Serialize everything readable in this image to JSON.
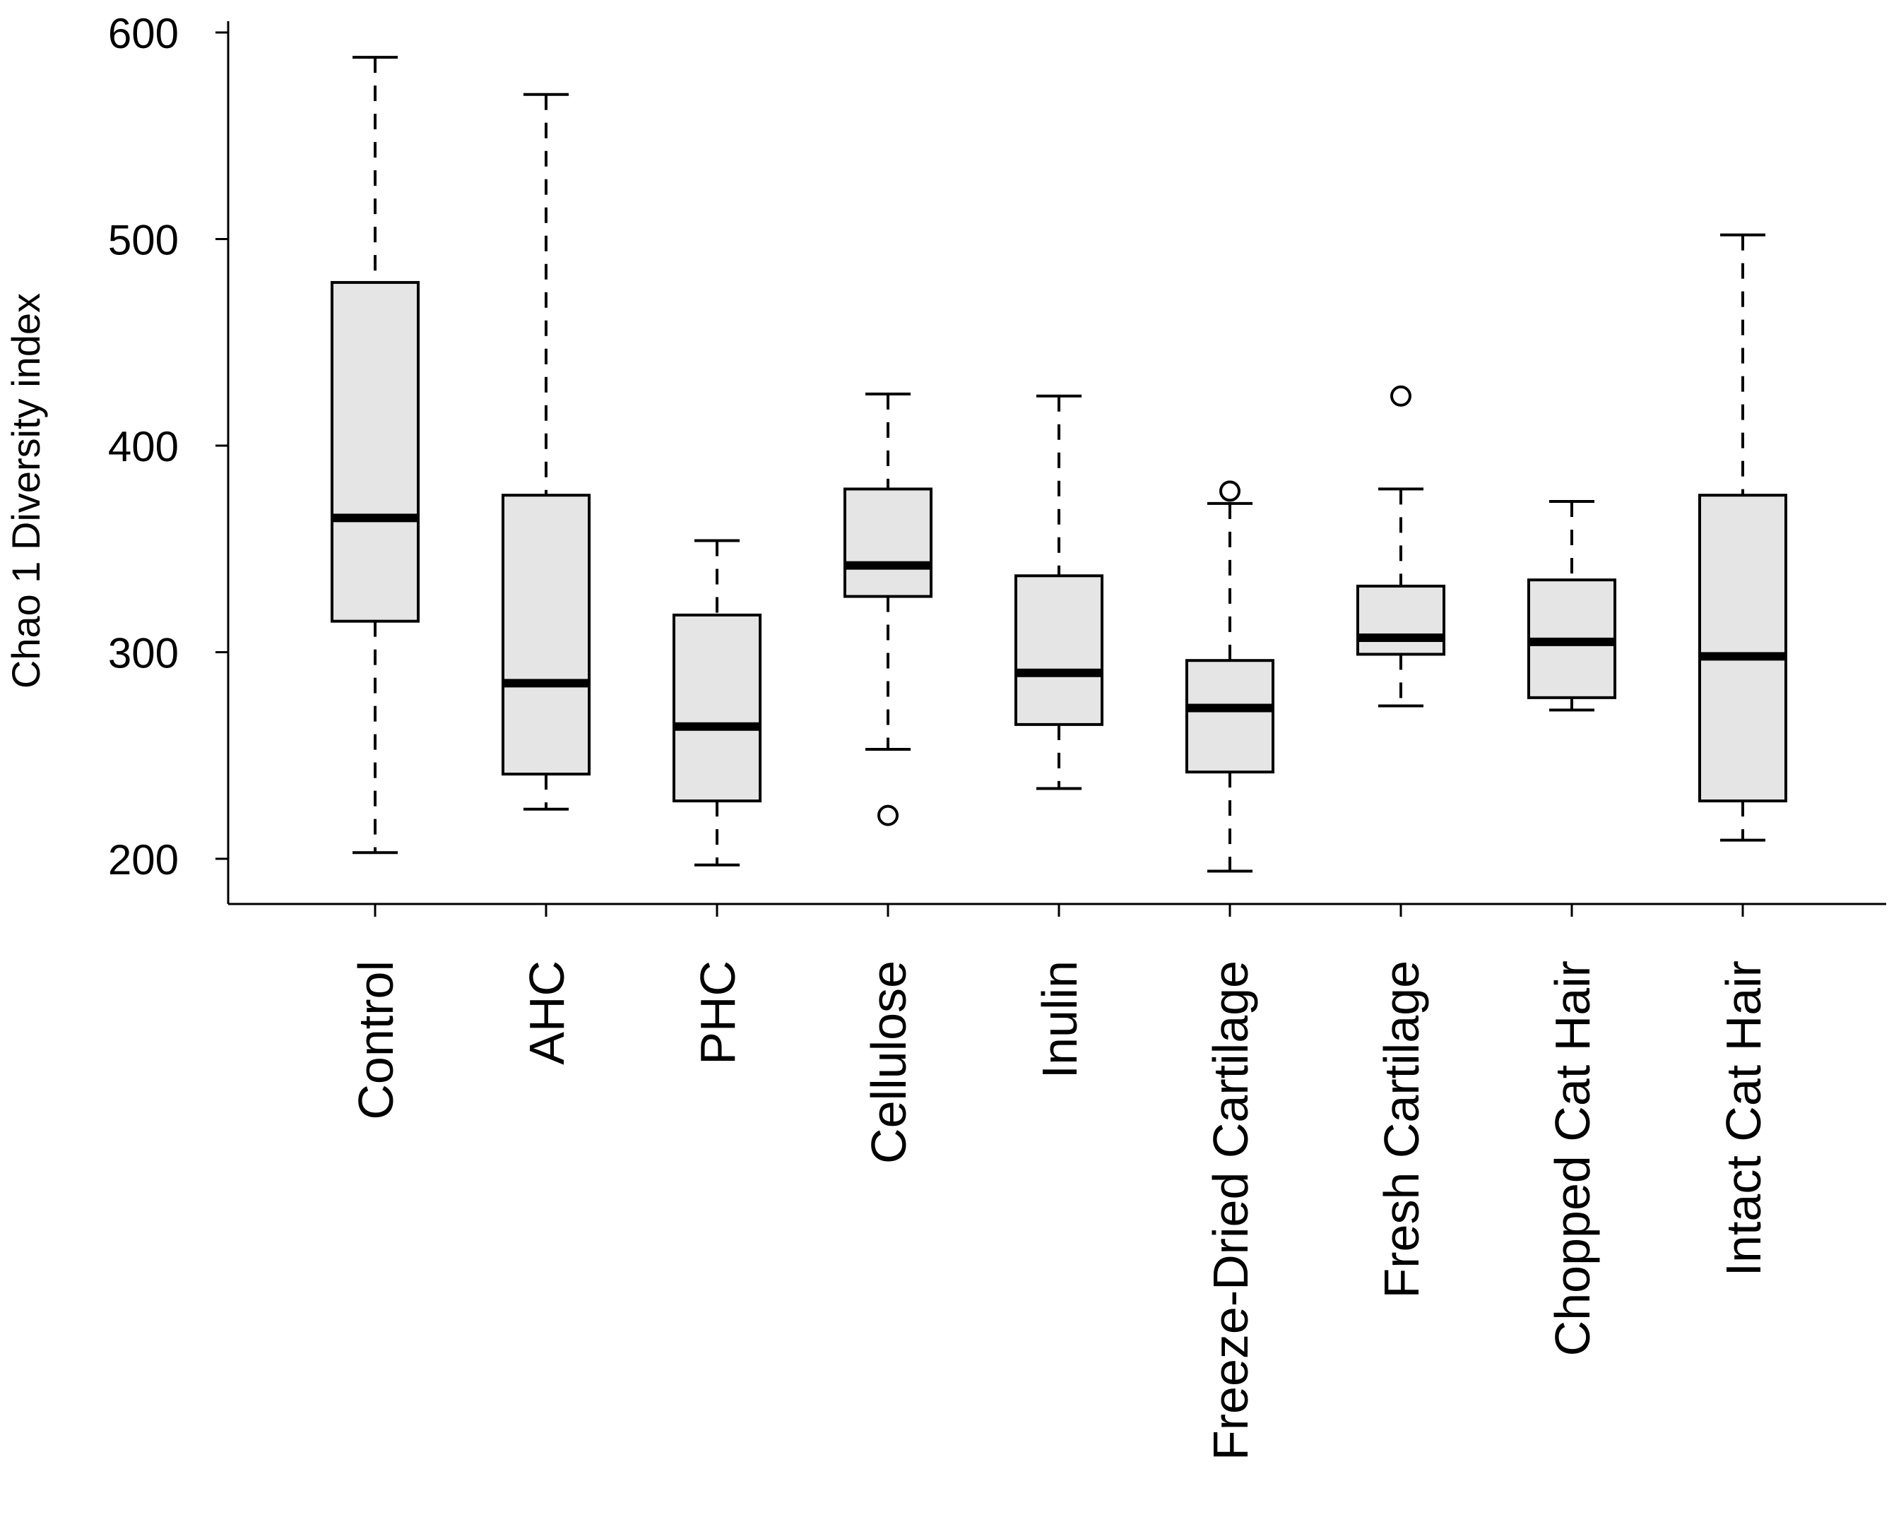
{
  "chart_data": {
    "type": "box",
    "title": "",
    "xlabel": "",
    "ylabel": "Chao 1 Diversity index",
    "ylim": [
      179,
      604
    ],
    "yticks": [
      200,
      300,
      400,
      500,
      600
    ],
    "grid": false,
    "categories": [
      "Control",
      "AHC",
      "PHC",
      "Cellulose",
      "Inulin",
      "Freeze-Dried Cartilage",
      "Fresh Cartilage",
      "Chopped Cat Hair",
      "Intact Cat Hair"
    ],
    "boxes": [
      {
        "whisker_low": 203,
        "q1": 315,
        "median": 365,
        "q3": 479,
        "whisker_high": 588,
        "outliers": []
      },
      {
        "whisker_low": 224,
        "q1": 241,
        "median": 285,
        "q3": 376,
        "whisker_high": 570,
        "outliers": []
      },
      {
        "whisker_low": 197,
        "q1": 228,
        "median": 264,
        "q3": 318,
        "whisker_high": 354,
        "outliers": []
      },
      {
        "whisker_low": 253,
        "q1": 327,
        "median": 342,
        "q3": 379,
        "whisker_high": 425,
        "outliers": [
          221
        ]
      },
      {
        "whisker_low": 234,
        "q1": 265,
        "median": 290,
        "q3": 337,
        "whisker_high": 424,
        "outliers": []
      },
      {
        "whisker_low": 194,
        "q1": 242,
        "median": 273,
        "q3": 296,
        "whisker_high": 372,
        "outliers": [
          378
        ]
      },
      {
        "whisker_low": 274,
        "q1": 299,
        "median": 307,
        "q3": 332,
        "whisker_high": 379,
        "outliers": [
          424
        ]
      },
      {
        "whisker_low": 272,
        "q1": 278,
        "median": 305,
        "q3": 335,
        "whisker_high": 373,
        "outliers": []
      },
      {
        "whisker_low": 209,
        "q1": 228,
        "median": 298,
        "q3": 376,
        "whisker_high": 502,
        "outliers": []
      }
    ],
    "colors": {
      "box_fill": "#e5e5e5",
      "stroke": "#000000"
    }
  }
}
